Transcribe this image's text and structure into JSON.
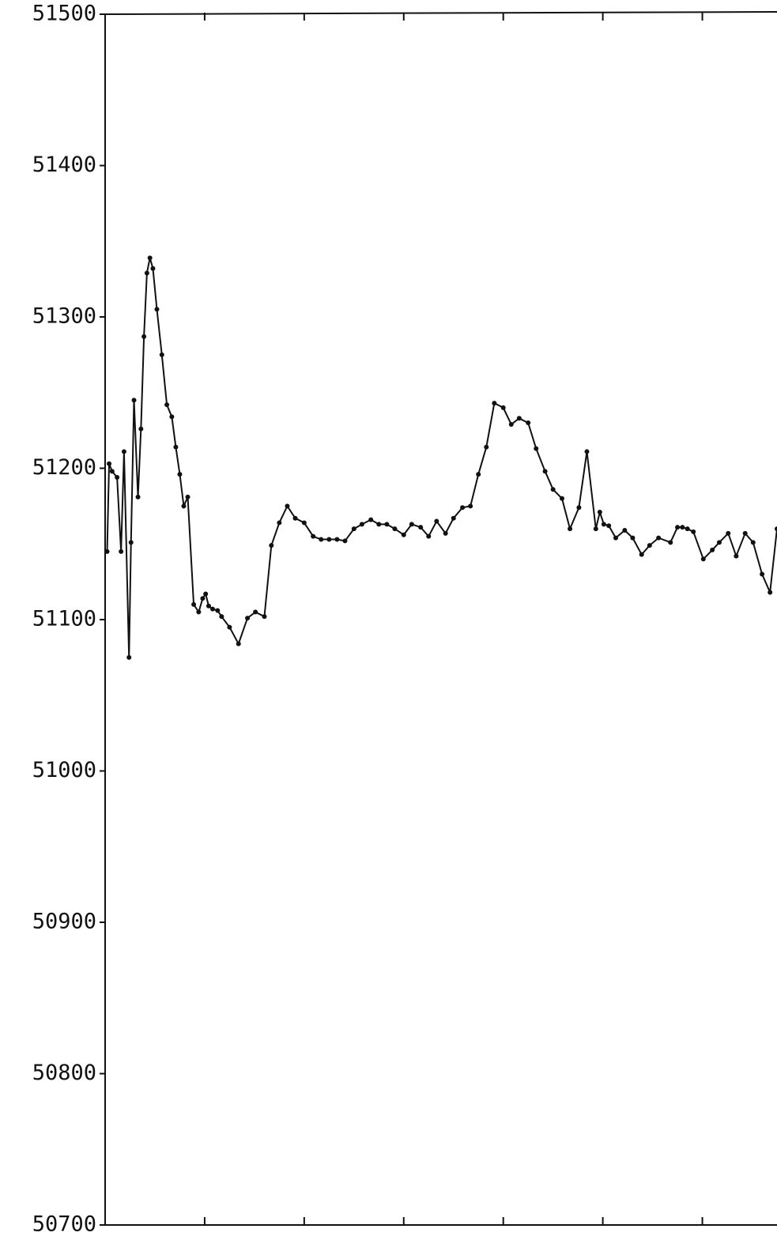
{
  "chart_data": {
    "type": "line",
    "x": [
      0.2,
      0.4,
      0.7,
      1.2,
      1.6,
      1.9,
      2.4,
      2.6,
      2.9,
      3.3,
      3.6,
      3.9,
      4.2,
      4.5,
      4.8,
      5.2,
      5.7,
      6.2,
      6.7,
      7.1,
      7.5,
      7.9,
      8.3,
      8.9,
      9.4,
      9.8,
      10.1,
      10.4,
      10.8,
      11.3,
      11.7,
      12.5,
      13.4,
      14.3,
      15.1,
      16.0,
      16.7,
      17.5,
      18.3,
      19.1,
      20.0,
      20.9,
      21.7,
      22.5,
      23.3,
      24.1,
      25.0,
      25.8,
      26.7,
      27.5,
      28.3,
      29.1,
      30.0,
      30.8,
      31.7,
      32.5,
      33.3,
      34.2,
      35.0,
      35.9,
      36.7,
      37.5,
      38.3,
      39.1,
      40.0,
      40.8,
      41.6,
      42.5,
      43.3,
      44.2,
      45.0,
      45.9,
      46.7,
      47.6,
      48.4,
      49.3,
      49.7,
      50.1,
      50.6,
      51.3,
      52.2,
      53.0,
      53.9,
      54.7,
      55.6,
      56.8,
      57.5,
      58.0,
      58.5,
      59.1,
      60.1,
      61.0,
      61.7,
      62.6,
      63.4,
      64.3,
      65.1,
      66.0,
      66.8,
      67.5
    ],
    "values": [
      51145,
      51203,
      51198,
      51194,
      51145,
      51211,
      51075,
      51151,
      51245,
      51181,
      51226,
      51287,
      51329,
      51339,
      51332,
      51305,
      51275,
      51242,
      51234,
      51214,
      51196,
      51175,
      51181,
      51110,
      51105,
      51114,
      51117,
      51109,
      51107,
      51106,
      51102,
      51095,
      51084,
      51101,
      51105,
      51102,
      51149,
      51164,
      51175,
      51167,
      51164,
      51155,
      51153,
      51153,
      51153,
      51152,
      51160,
      51163,
      51166,
      51163,
      51163,
      51160,
      51156,
      51163,
      51161,
      51155,
      51165,
      51157,
      51167,
      51174,
      51175,
      51196,
      51214,
      51243,
      51240,
      51229,
      51233,
      51230,
      51213,
      51198,
      51186,
      51180,
      51160,
      51174,
      51211,
      51160,
      51171,
      51163,
      51162,
      51154,
      51159,
      51154,
      51143,
      51149,
      51154,
      51151,
      51161,
      51161,
      51160,
      51158,
      51140,
      51146,
      51151,
      51157,
      51142,
      51157,
      51151,
      51130,
      51118,
      51160
    ],
    "color": "#111111",
    "xlim": [
      0,
      67.5
    ],
    "xticks": [
      10,
      20,
      30,
      40,
      50,
      60
    ],
    "ylim": [
      50700,
      51500
    ],
    "yticks": [
      50700,
      50800,
      50900,
      51000,
      51100,
      51200,
      51300,
      51400,
      51500
    ]
  }
}
